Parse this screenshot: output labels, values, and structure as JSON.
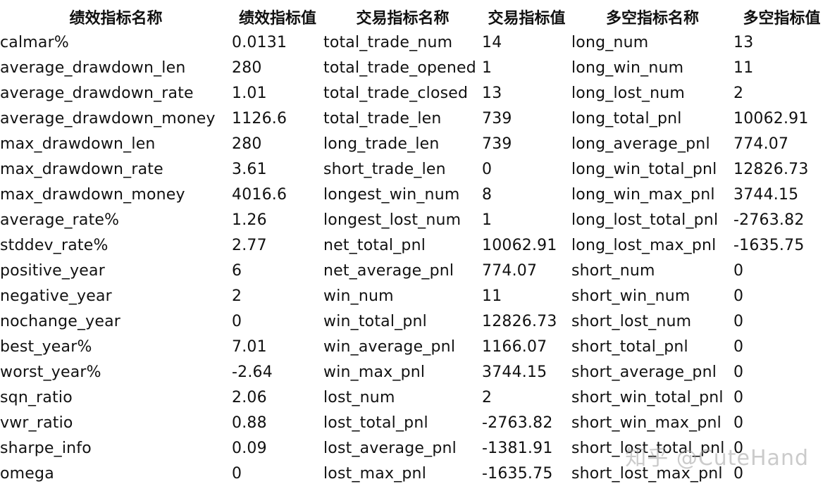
{
  "headers": [
    "绩效指标名称",
    "绩效指标值",
    "交易指标名称",
    "交易指标值",
    "多空指标名称",
    "多空指标值"
  ],
  "rows": [
    [
      "calmar%",
      "0.0131",
      "total_trade_num",
      "14",
      "long_num",
      "13"
    ],
    [
      "average_drawdown_len",
      "280",
      "total_trade_opened",
      "1",
      "long_win_num",
      "11"
    ],
    [
      "average_drawdown_rate",
      "1.01",
      "total_trade_closed",
      "13",
      "long_lost_num",
      "2"
    ],
    [
      "average_drawdown_money",
      "1126.6",
      "total_trade_len",
      "739",
      "long_total_pnl",
      "10062.91"
    ],
    [
      "max_drawdown_len",
      "280",
      "long_trade_len",
      "739",
      "long_average_pnl",
      "774.07"
    ],
    [
      "max_drawdown_rate",
      "3.61",
      "short_trade_len",
      "0",
      "long_win_total_pnl",
      "12826.73"
    ],
    [
      "max_drawdown_money",
      "4016.6",
      "longest_win_num",
      "8",
      "long_win_max_pnl",
      "3744.15"
    ],
    [
      "average_rate%",
      "1.26",
      "longest_lost_num",
      "1",
      "long_lost_total_pnl",
      "-2763.82"
    ],
    [
      "stddev_rate%",
      "2.77",
      "net_total_pnl",
      "10062.91",
      "long_lost_max_pnl",
      "-1635.75"
    ],
    [
      "positive_year",
      "6",
      "net_average_pnl",
      "774.07",
      "short_num",
      "0"
    ],
    [
      "negative_year",
      "2",
      "win_num",
      "11",
      "short_win_num",
      "0"
    ],
    [
      "nochange_year",
      "0",
      "win_total_pnl",
      "12826.73",
      "short_lost_num",
      "0"
    ],
    [
      "best_year%",
      "7.01",
      "win_average_pnl",
      "1166.07",
      "short_total_pnl",
      "0"
    ],
    [
      "worst_year%",
      "-2.64",
      "win_max_pnl",
      "3744.15",
      "short_average_pnl",
      "0"
    ],
    [
      "sqn_ratio",
      "2.06",
      "lost_num",
      "2",
      "short_win_total_pnl",
      "0"
    ],
    [
      "vwr_ratio",
      "0.88",
      "lost_total_pnl",
      "-2763.82",
      "short_win_max_pnl",
      "0"
    ],
    [
      "sharpe_info",
      "0.09",
      "lost_average_pnl",
      "-1381.91",
      "short_lost_total_pnl",
      "0"
    ],
    [
      "omega",
      "0",
      "lost_max_pnl",
      "-1635.75",
      "short_lost_max_pnl",
      "0"
    ]
  ],
  "watermark": "知乎 @CuteHand"
}
